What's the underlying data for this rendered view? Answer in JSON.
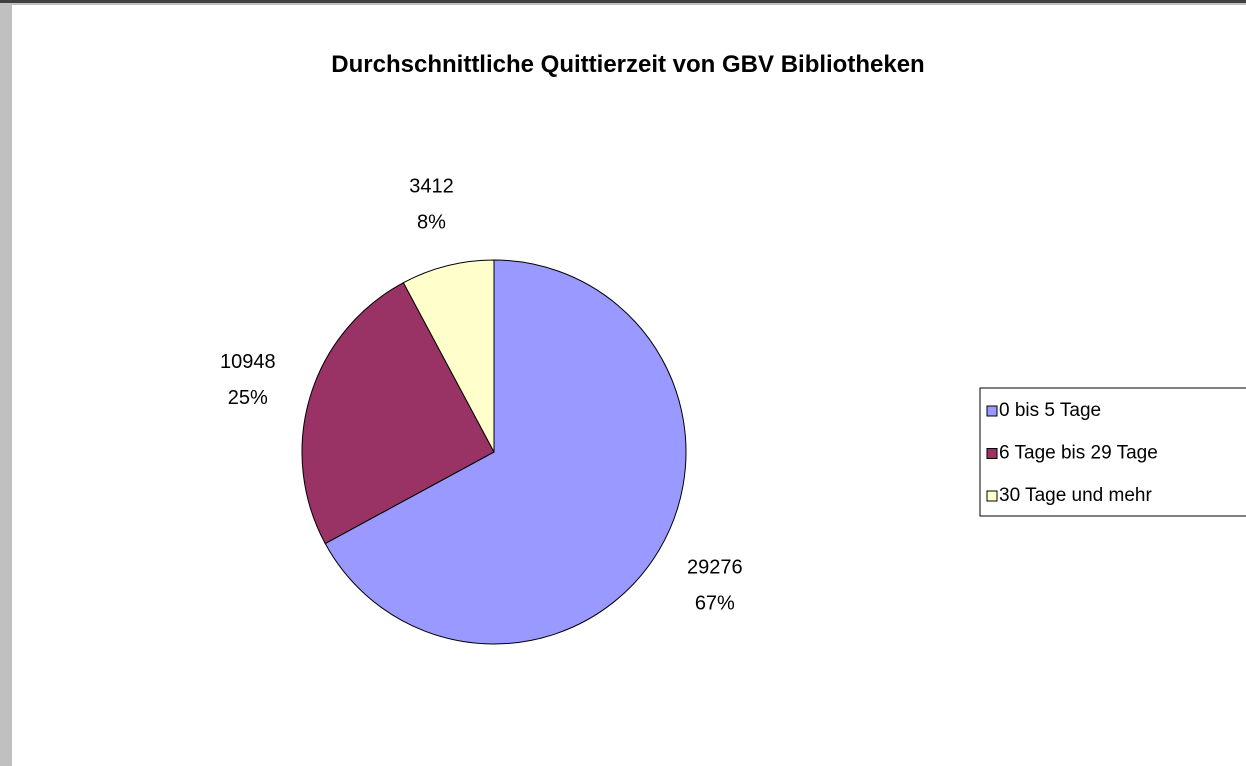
{
  "chart_data": {
    "type": "pie",
    "title": "Durchschnittliche Quittierzeit von GBV Bibliotheken",
    "categories": [
      "0 bis 5 Tage",
      "6 Tage bis 29 Tage",
      "30 Tage und mehr"
    ],
    "values": [
      29276,
      10948,
      3412
    ],
    "percent_labels": [
      "67%",
      "25%",
      "8%"
    ],
    "colors": [
      "#9999ff",
      "#993366",
      "#ffffcc"
    ],
    "legend": "right"
  }
}
